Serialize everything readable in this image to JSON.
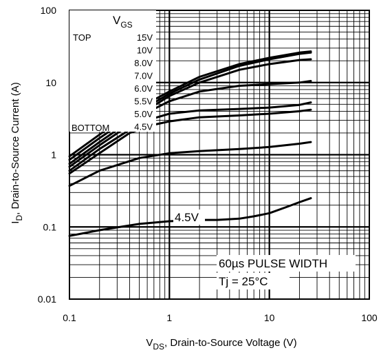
{
  "chart_data": {
    "type": "line",
    "x_scale": "log",
    "y_scale": "log",
    "xlim": [
      0.1,
      100
    ],
    "ylim": [
      0.01,
      100
    ],
    "grid": true,
    "x_ticks": [
      "0.1",
      "1",
      "10",
      "100"
    ],
    "y_ticks": [
      "0.01",
      "0.1",
      "1",
      "10",
      "100"
    ],
    "xlabel": {
      "main": "V",
      "sub": "DS",
      "rest": ", Drain-to-Source Voltage (V)"
    },
    "ylabel": {
      "main": "I",
      "sub": "D",
      "rest": ", Drain-to-Source Current (A)"
    },
    "legend": {
      "header_main": "V",
      "header_sub": "GS",
      "top_label": "TOP",
      "bottom_label": "BOTTOM",
      "entries": [
        "15V",
        "10V",
        "8.0V",
        "7.0V",
        "6.0V",
        "5.5V",
        "5.0V",
        "4.5V"
      ]
    },
    "annotations": {
      "curve_label": "4.5V",
      "pulse": "60µs PULSE WIDTH",
      "tj": "Tj = 25°C"
    },
    "series": [
      {
        "name": "15V",
        "x": [
          0.1,
          0.2,
          0.5,
          1,
          2,
          5,
          10,
          20,
          26
        ],
        "y": [
          0.95,
          1.9,
          4.5,
          7.5,
          12,
          18,
          22,
          26,
          27
        ]
      },
      {
        "name": "10V",
        "x": [
          0.1,
          0.2,
          0.5,
          1,
          2,
          5,
          10,
          20,
          26
        ],
        "y": [
          0.85,
          1.7,
          4.0,
          7.0,
          11,
          17,
          21,
          25,
          26
        ]
      },
      {
        "name": "8.0V",
        "x": [
          0.1,
          0.2,
          0.5,
          1,
          2,
          5,
          10,
          20,
          26
        ],
        "y": [
          0.75,
          1.5,
          3.6,
          6.5,
          10,
          15,
          18,
          20.5,
          21
        ]
      },
      {
        "name": "7.0V",
        "x": [
          0.1,
          0.2,
          0.5,
          0.7,
          1,
          2,
          5,
          10,
          20,
          26
        ],
        "y": [
          0.68,
          1.35,
          3.2,
          4.3,
          5.5,
          7.5,
          9.0,
          9.5,
          10.0,
          10.5
        ]
      },
      {
        "name": "6.0V",
        "x": [
          0.1,
          0.2,
          0.5,
          0.7,
          1,
          2,
          5,
          10,
          20,
          26
        ],
        "y": [
          0.6,
          1.2,
          2.7,
          3.2,
          3.7,
          4.1,
          4.3,
          4.5,
          4.9,
          5.3
        ]
      },
      {
        "name": "5.5V",
        "x": [
          0.1,
          0.2,
          0.4,
          0.7,
          1,
          2,
          5,
          10,
          20,
          26
        ],
        "y": [
          0.55,
          1.05,
          2.0,
          2.6,
          2.9,
          3.3,
          3.5,
          3.7,
          4.0,
          4.2
        ]
      },
      {
        "name": "5.0V",
        "x": [
          0.1,
          0.2,
          0.5,
          1,
          2,
          5,
          10,
          20,
          26
        ],
        "y": [
          0.37,
          0.6,
          0.9,
          1.05,
          1.12,
          1.2,
          1.28,
          1.42,
          1.5
        ]
      },
      {
        "name": "4.5V",
        "x": [
          0.1,
          0.2,
          0.5,
          1,
          2,
          3,
          5,
          7,
          10,
          15,
          20,
          26
        ],
        "y": [
          0.075,
          0.09,
          0.11,
          0.12,
          0.125,
          0.125,
          0.13,
          0.14,
          0.155,
          0.19,
          0.22,
          0.25
        ]
      }
    ]
  }
}
